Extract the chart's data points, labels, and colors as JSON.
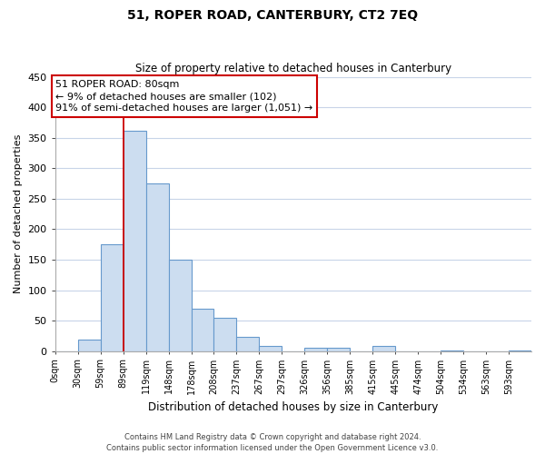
{
  "title": "51, ROPER ROAD, CANTERBURY, CT2 7EQ",
  "subtitle": "Size of property relative to detached houses in Canterbury",
  "xlabel": "Distribution of detached houses by size in Canterbury",
  "ylabel": "Number of detached properties",
  "bar_labels": [
    "0sqm",
    "30sqm",
    "59sqm",
    "89sqm",
    "119sqm",
    "148sqm",
    "178sqm",
    "208sqm",
    "237sqm",
    "267sqm",
    "297sqm",
    "326sqm",
    "356sqm",
    "385sqm",
    "415sqm",
    "445sqm",
    "474sqm",
    "504sqm",
    "534sqm",
    "563sqm",
    "593sqm"
  ],
  "bar_values": [
    0,
    19,
    175,
    362,
    275,
    150,
    70,
    55,
    23,
    9,
    0,
    5,
    5,
    0,
    8,
    0,
    0,
    1,
    0,
    0,
    1
  ],
  "bar_color": "#ccddf0",
  "bar_edge_color": "#6699cc",
  "vline_color": "#cc0000",
  "vline_x_index": 3,
  "ylim": [
    0,
    450
  ],
  "yticks": [
    0,
    50,
    100,
    150,
    200,
    250,
    300,
    350,
    400,
    450
  ],
  "annotation_title": "51 ROPER ROAD: 80sqm",
  "annotation_line1": "← 9% of detached houses are smaller (102)",
  "annotation_line2": "91% of semi-detached houses are larger (1,051) →",
  "annotation_box_facecolor": "#ffffff",
  "annotation_box_edgecolor": "#cc0000",
  "footer1": "Contains HM Land Registry data © Crown copyright and database right 2024.",
  "footer2": "Contains public sector information licensed under the Open Government Licence v3.0.",
  "background_color": "#ffffff",
  "grid_color": "#c8d4e8",
  "title_fontsize": 10,
  "subtitle_fontsize": 8.5,
  "ylabel_fontsize": 8,
  "xlabel_fontsize": 8.5,
  "tick_fontsize": 8,
  "annot_fontsize": 8,
  "footer_fontsize": 6
}
